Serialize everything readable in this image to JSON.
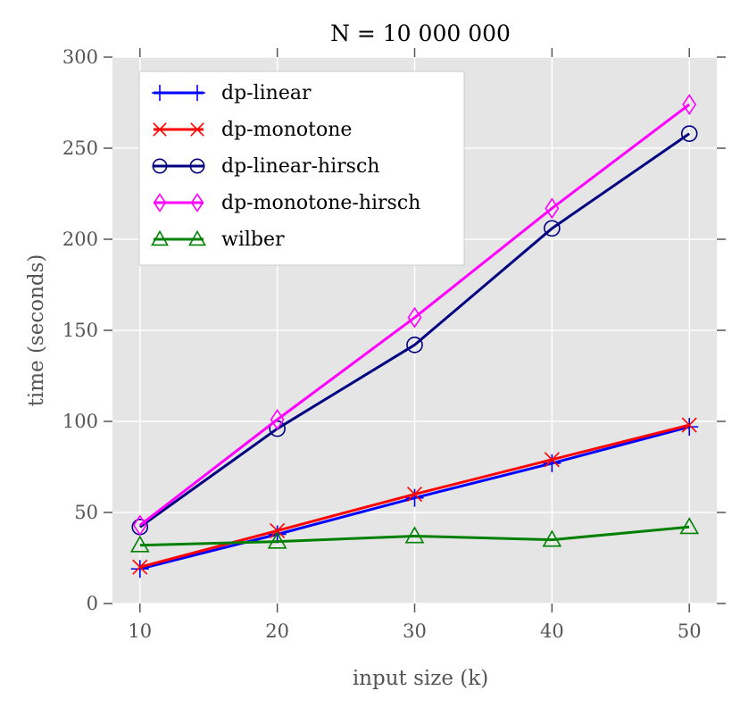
{
  "chart_data": {
    "type": "line",
    "title": "N = 10 000 000",
    "xlabel": "input size (k)",
    "ylabel": "time (seconds)",
    "x": [
      10,
      20,
      30,
      40,
      50
    ],
    "xlim": [
      8,
      52
    ],
    "ylim": [
      0,
      300
    ],
    "xticks": [
      10,
      20,
      30,
      40,
      50
    ],
    "yticks": [
      0,
      50,
      100,
      150,
      200,
      250,
      300
    ],
    "xtick_labels": [
      "10",
      "20",
      "30",
      "40",
      "50"
    ],
    "ytick_labels": [
      "0",
      "50",
      "100",
      "150",
      "200",
      "250",
      "300"
    ],
    "grid": true,
    "background": "#e5e5e5",
    "legend_position": "top-left",
    "series": [
      {
        "name": "dp-linear",
        "color": "#0000ff",
        "marker": "plus",
        "values": [
          19,
          38,
          58,
          77,
          97
        ]
      },
      {
        "name": "dp-monotone",
        "color": "#ff0000",
        "marker": "cross",
        "values": [
          20,
          40,
          60,
          79,
          98
        ]
      },
      {
        "name": "dp-linear-hirsch",
        "color": "#000080",
        "marker": "circle",
        "values": [
          42,
          96,
          142,
          206,
          258
        ]
      },
      {
        "name": "dp-monotone-hirsch",
        "color": "#ff00ff",
        "marker": "diamond",
        "values": [
          43,
          101,
          157,
          217,
          274
        ]
      },
      {
        "name": "wilber",
        "color": "#008000",
        "marker": "triangle",
        "values": [
          32,
          34,
          37,
          35,
          42
        ]
      }
    ]
  }
}
